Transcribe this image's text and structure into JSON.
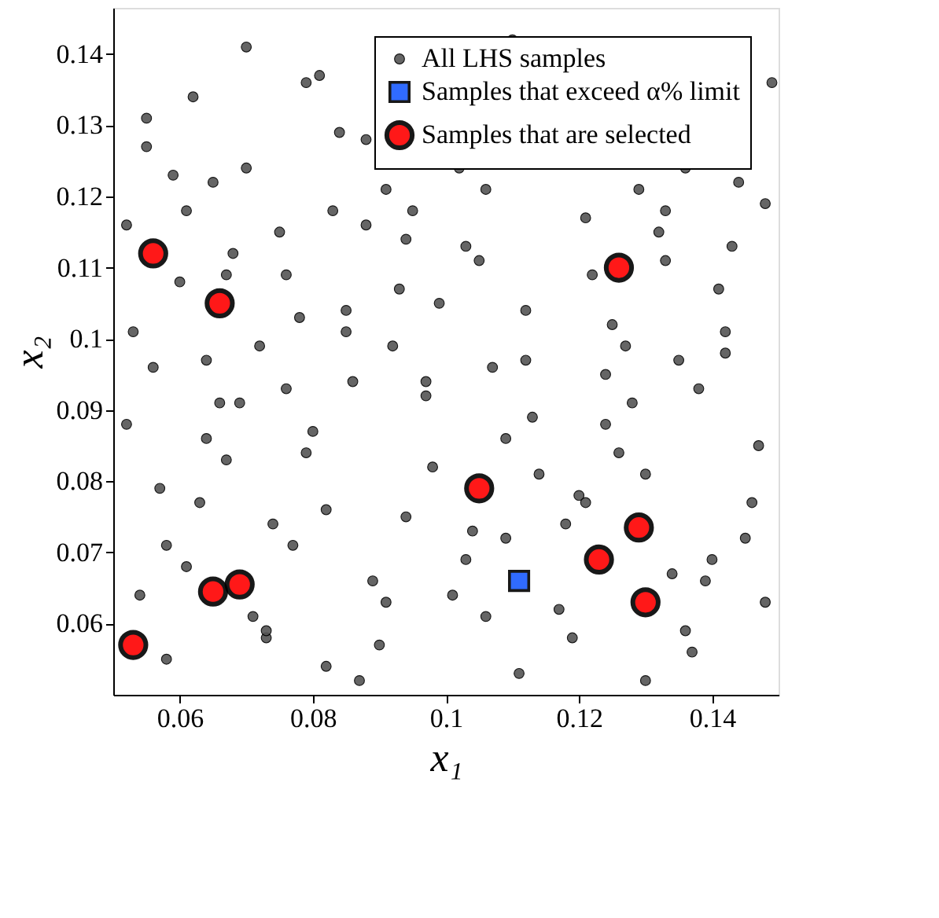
{
  "chart_data": {
    "type": "scatter",
    "xlabel": "x₁",
    "ylabel": "x₂",
    "xlim": [
      0.05,
      0.15
    ],
    "ylim": [
      0.05,
      0.1465
    ],
    "xticks": [
      0.06,
      0.08,
      0.1,
      0.12,
      0.14
    ],
    "yticks": [
      0.06,
      0.07,
      0.08,
      0.09,
      0.1,
      0.11,
      0.12,
      0.13,
      0.14
    ],
    "grid": false,
    "legend": "top right",
    "series": [
      {
        "name": "All LHS samples",
        "color": "#555555",
        "marker": "circle",
        "x": [
          0.052,
          0.055,
          0.058,
          0.061,
          0.064,
          0.067,
          0.07,
          0.073,
          0.076,
          0.079,
          0.082,
          0.085,
          0.088,
          0.091,
          0.094,
          0.097,
          0.1,
          0.103,
          0.106,
          0.109,
          0.112,
          0.115,
          0.118,
          0.121,
          0.124,
          0.127,
          0.13,
          0.133,
          0.136,
          0.139,
          0.142,
          0.145,
          0.148,
          0.053,
          0.057,
          0.062,
          0.066,
          0.071,
          0.075,
          0.08,
          0.084,
          0.089,
          0.093,
          0.098,
          0.102,
          0.107,
          0.111,
          0.116,
          0.12,
          0.125,
          0.129,
          0.134,
          0.138,
          0.143,
          0.147,
          0.054,
          0.059,
          0.063,
          0.068,
          0.072,
          0.077,
          0.081,
          0.086,
          0.09,
          0.095,
          0.099,
          0.104,
          0.108,
          0.113,
          0.117,
          0.122,
          0.126,
          0.131,
          0.135,
          0.14,
          0.144,
          0.149,
          0.056,
          0.06,
          0.065,
          0.069,
          0.074,
          0.078,
          0.083,
          0.087,
          0.092,
          0.096,
          0.101,
          0.105,
          0.11,
          0.114,
          0.119,
          0.123,
          0.128,
          0.132,
          0.137,
          0.141,
          0.146,
          0.052,
          0.058,
          0.064,
          0.07,
          0.076,
          0.082,
          0.088,
          0.094,
          0.1,
          0.106,
          0.112,
          0.118,
          0.124,
          0.13,
          0.136,
          0.142,
          0.148,
          0.055,
          0.061,
          0.067,
          0.073,
          0.079,
          0.085,
          0.091,
          0.097,
          0.103,
          0.109,
          0.115,
          0.121,
          0.127,
          0.133,
          0.139
        ],
        "values": [
          0.088,
          0.131,
          0.071,
          0.118,
          0.097,
          0.083,
          0.124,
          0.058,
          0.109,
          0.136,
          0.076,
          0.101,
          0.128,
          0.063,
          0.114,
          0.092,
          null,
          0.069,
          0.121,
          0.086,
          0.104,
          null,
          0.074,
          0.117,
          0.095,
          null,
          0.081,
          0.111,
          0.059,
          null,
          0.098,
          0.072,
          0.119,
          0.101,
          0.079,
          0.134,
          0.091,
          0.061,
          0.115,
          0.087,
          0.129,
          0.066,
          0.107,
          0.082,
          0.124,
          0.096,
          0.053,
          null,
          0.078,
          0.102,
          0.121,
          0.067,
          0.093,
          0.113,
          0.085,
          0.064,
          0.123,
          0.077,
          0.112,
          0.099,
          0.071,
          0.137,
          0.094,
          0.057,
          0.118,
          0.105,
          0.073,
          null,
          0.089,
          0.062,
          0.109,
          0.084,
          null,
          0.097,
          0.069,
          0.122,
          0.136,
          0.096,
          0.108,
          0.122,
          0.091,
          0.074,
          0.103,
          0.118,
          0.052,
          0.099,
          null,
          0.064,
          0.111,
          0.142,
          0.081,
          0.058,
          null,
          0.091,
          0.115,
          0.056,
          0.107,
          0.077,
          0.116,
          0.055,
          0.086,
          0.141,
          0.093,
          0.054,
          0.116,
          0.075,
          null,
          0.061,
          0.097,
          null,
          0.088,
          0.052,
          0.124,
          0.101,
          0.063,
          0.127,
          0.068,
          0.109,
          0.059,
          0.084,
          0.104,
          0.121,
          0.094,
          0.113,
          0.072,
          null,
          0.077,
          0.099,
          0.118,
          0.066
        ]
      },
      {
        "name": "Samples that exceed α% limit",
        "color": "#1a5cff",
        "marker": "square",
        "x": [
          0.111
        ],
        "values": [
          0.066
        ]
      },
      {
        "name": "Samples that are selected",
        "color": "#ff0000",
        "marker": "circle",
        "x": [
          0.053,
          0.065,
          0.069,
          0.056,
          0.066,
          0.105,
          0.126,
          0.123,
          0.129,
          0.13
        ],
        "values": [
          0.057,
          0.0645,
          0.0655,
          0.112,
          0.105,
          0.079,
          0.11,
          0.069,
          0.0735,
          0.063
        ]
      }
    ]
  }
}
